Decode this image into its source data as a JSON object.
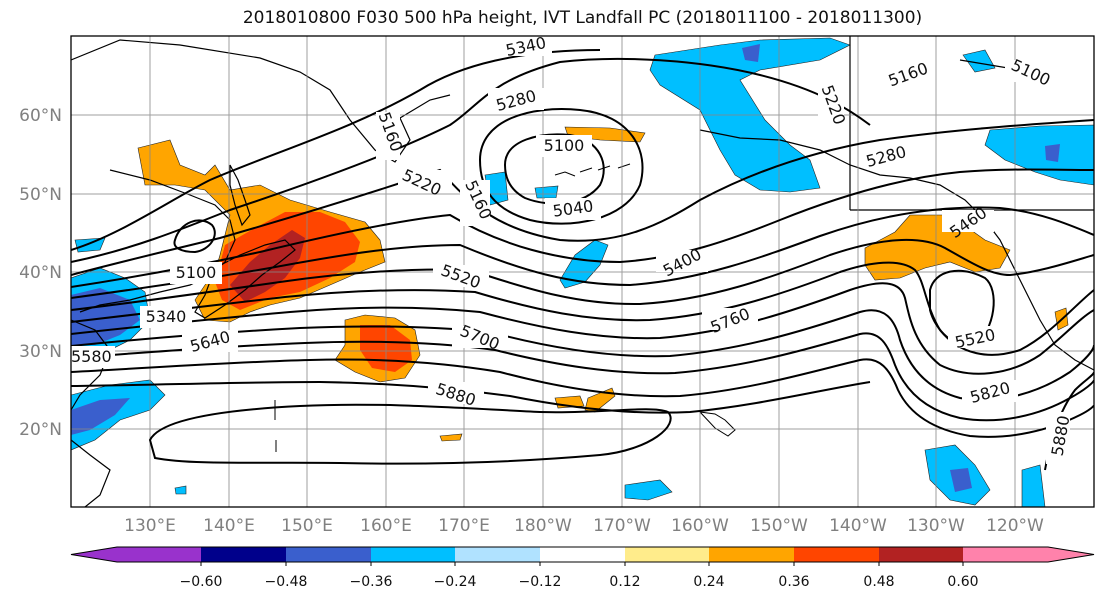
{
  "title": "2018010800 F030 500 hPa height, IVT Landfall PC (2018011100 - 2018011300)",
  "map": {
    "lat_labels": [
      "60°N",
      "50°N",
      "40°N",
      "30°N",
      "20°N"
    ],
    "lon_labels": [
      "130°E",
      "140°E",
      "150°E",
      "160°E",
      "170°E",
      "180°W",
      "170°W",
      "160°W",
      "150°W",
      "140°W",
      "130°W",
      "120°W"
    ],
    "contour_labels": [
      "5340",
      "5280",
      "5100",
      "5040",
      "5160",
      "5220",
      "5160",
      "5220",
      "5160",
      "5100",
      "5280",
      "5460",
      "5400",
      "5520",
      "5700",
      "5760",
      "5520",
      "5820",
      "5880",
      "5880",
      "5100",
      "5340",
      "5640",
      "5580"
    ]
  },
  "colorbar": {
    "colors": [
      "#9932cc",
      "#00008b",
      "#3a5fcd",
      "#00bfff",
      "#b0e2ff",
      "#ffffff",
      "#ffec8b",
      "#ffa500",
      "#ff4500",
      "#b22222",
      "#ff82ab"
    ],
    "tick_labels": [
      "−0.60",
      "−0.48",
      "−0.36",
      "−0.24",
      "−0.12",
      "0.12",
      "0.24",
      "0.36",
      "0.48",
      "0.60"
    ]
  }
}
